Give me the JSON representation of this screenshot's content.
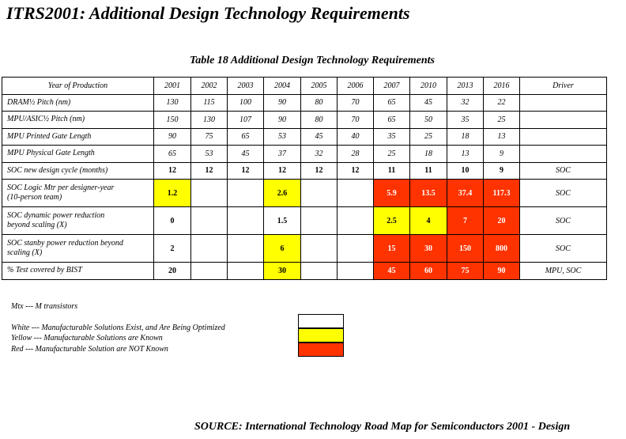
{
  "title": "ITRS2001: Additional Design Technology Requirements",
  "table_title": "Table 18  Additional Design Technology Requirements",
  "header": {
    "label": "Year of Production",
    "years": [
      "2001",
      "2002",
      "2003",
      "2004",
      "2005",
      "2006",
      "2007",
      "2010",
      "2013",
      "2016"
    ],
    "driver": "Driver"
  },
  "rows": [
    {
      "label": [
        "DRAM½ Pitch (nm)"
      ],
      "bold": false,
      "cells": [
        "130",
        "115",
        "100",
        "90",
        "80",
        "70",
        "65",
        "45",
        "32",
        "22"
      ],
      "colors": [
        "",
        "",
        "",
        "",
        "",
        "",
        "",
        "",
        "",
        ""
      ],
      "driver": ""
    },
    {
      "label": [
        "MPU/ASIC½ Pitch (nm)"
      ],
      "bold": false,
      "cells": [
        "150",
        "130",
        "107",
        "90",
        "80",
        "70",
        "65",
        "50",
        "35",
        "25"
      ],
      "colors": [
        "",
        "",
        "",
        "",
        "",
        "",
        "",
        "",
        "",
        ""
      ],
      "driver": ""
    },
    {
      "label": [
        "MPU Printed Gate Length"
      ],
      "bold": false,
      "cells": [
        "90",
        "75",
        "65",
        "53",
        "45",
        "40",
        "35",
        "25",
        "18",
        "13"
      ],
      "colors": [
        "",
        "",
        "",
        "",
        "",
        "",
        "",
        "",
        "",
        ""
      ],
      "driver": ""
    },
    {
      "label": [
        "MPU Physical Gate Length"
      ],
      "bold": false,
      "cells": [
        "65",
        "53",
        "45",
        "37",
        "32",
        "28",
        "25",
        "18",
        "13",
        "9"
      ],
      "colors": [
        "",
        "",
        "",
        "",
        "",
        "",
        "",
        "",
        "",
        ""
      ],
      "driver": ""
    },
    {
      "label": [
        "SOC new design cycle (months)"
      ],
      "bold": true,
      "cells": [
        "12",
        "12",
        "12",
        "12",
        "12",
        "12",
        "11",
        "11",
        "10",
        "9"
      ],
      "colors": [
        "",
        "",
        "",
        "",
        "",
        "",
        "",
        "",
        "",
        ""
      ],
      "driver": "SOC"
    },
    {
      "label": [
        "SOC Logic Mtr per designer-year",
        "(10-person team)"
      ],
      "bold": true,
      "cells": [
        "1.2",
        "",
        "",
        "2.6",
        "",
        "",
        "5.9",
        "13.5",
        "37.4",
        "117.3"
      ],
      "colors": [
        "yellow",
        "",
        "",
        "yellow",
        "",
        "",
        "red",
        "red",
        "red",
        "red"
      ],
      "driver": "SOC"
    },
    {
      "label": [
        "SOC dynamic power reduction",
        "beyond scaling (X)"
      ],
      "bold": true,
      "cells": [
        "0",
        "",
        "",
        "1.5",
        "",
        "",
        "2.5",
        "4",
        "7",
        "20"
      ],
      "colors": [
        "",
        "",
        "",
        "",
        "",
        "",
        "yellow",
        "yellow",
        "red",
        "red"
      ],
      "driver": "SOC"
    },
    {
      "label": [
        "SOC stanby power reduction beyond",
        "scaling (X)"
      ],
      "bold": true,
      "cells": [
        "2",
        "",
        "",
        "6",
        "",
        "",
        "15",
        "30",
        "150",
        "800"
      ],
      "colors": [
        "",
        "",
        "",
        "yellow",
        "",
        "",
        "red",
        "red",
        "red",
        "red"
      ],
      "driver": "SOC"
    },
    {
      "label": [
        "% Test covered by BIST"
      ],
      "bold": true,
      "cells": [
        "20",
        "",
        "",
        "30",
        "",
        "",
        "45",
        "60",
        "75",
        "90"
      ],
      "colors": [
        "",
        "",
        "",
        "yellow",
        "",
        "",
        "red",
        "red",
        "red",
        "red"
      ],
      "driver": "MPU, SOC"
    }
  ],
  "legend": {
    "mtx": "Mtx --- M transistors",
    "white": "White --- Manufacturable Solutions Exist, and Are Being Optimized",
    "yellow": "Yellow --- Manufacturable Solutions are Known",
    "red": "Red --- Manufacturable Solution are NOT Known",
    "colors": {
      "white": "#ffffff",
      "yellow": "#ffff00",
      "red": "#ff3300"
    }
  },
  "source": "SOURCE: International Technology Road Map for Semiconductors 2001 - Design"
}
